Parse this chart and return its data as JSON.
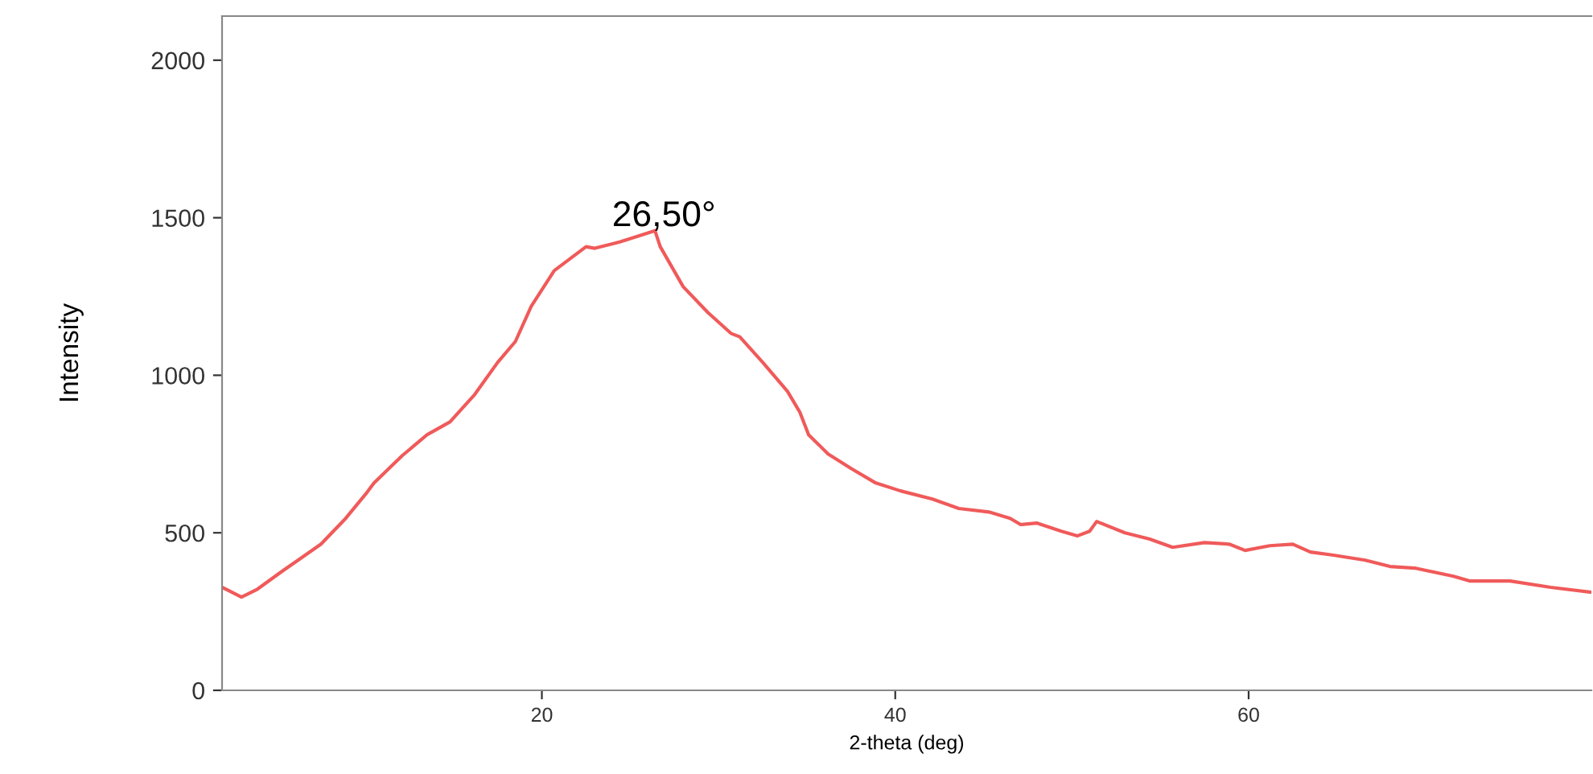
{
  "chart_data": {
    "type": "line",
    "xlabel": "2-theta (deg)",
    "ylabel": "Intensity",
    "xlim": [
      1.9,
      79.4
    ],
    "ylim": [
      0,
      2140
    ],
    "xticks": [
      20,
      40,
      60
    ],
    "yticks": [
      0,
      500,
      1000,
      1500,
      2000
    ],
    "grid": false,
    "legend": false,
    "marker": "none",
    "line_style": "solid",
    "annotations": [
      {
        "text": "26,50°",
        "x": 26.5,
        "y": 1459
      }
    ],
    "series": [
      {
        "color": "#f05a5a",
        "x": [
          1.9,
          3.0,
          3.9,
          5.3,
          6.2,
          7.5,
          8.9,
          10.1,
          10.5,
          12.1,
          13.5,
          14.8,
          16.2,
          17.5,
          18.5,
          19.4,
          20.7,
          22.5,
          23.0,
          24.4,
          25.3,
          26.4,
          26.7,
          28.0,
          29.4,
          30.7,
          31.2,
          32.5,
          33.9,
          34.6,
          35.1,
          36.2,
          37.5,
          38.9,
          40.3,
          42.1,
          43.6,
          45.3,
          46.5,
          47.1,
          48.0,
          49.4,
          50.3,
          51.0,
          51.4,
          53.0,
          54.4,
          55.7,
          57.5,
          58.9,
          59.8,
          61.2,
          62.5,
          63.5,
          64.8,
          66.6,
          68.0,
          69.4,
          71.6,
          72.5,
          74.8,
          77.1,
          79.4
        ],
        "values": [
          327,
          296,
          321,
          378,
          413,
          464,
          546,
          628,
          658,
          745,
          811,
          852,
          939,
          1041,
          1107,
          1219,
          1332,
          1408,
          1403,
          1423,
          1439,
          1459,
          1408,
          1281,
          1199,
          1133,
          1122,
          1041,
          949,
          883,
          811,
          750,
          704,
          658,
          633,
          607,
          577,
          566,
          546,
          526,
          531,
          505,
          490,
          505,
          536,
          500,
          480,
          454,
          469,
          464,
          444,
          459,
          464,
          439,
          429,
          413,
          393,
          388,
          362,
          347,
          347,
          327,
          311
        ]
      }
    ]
  }
}
